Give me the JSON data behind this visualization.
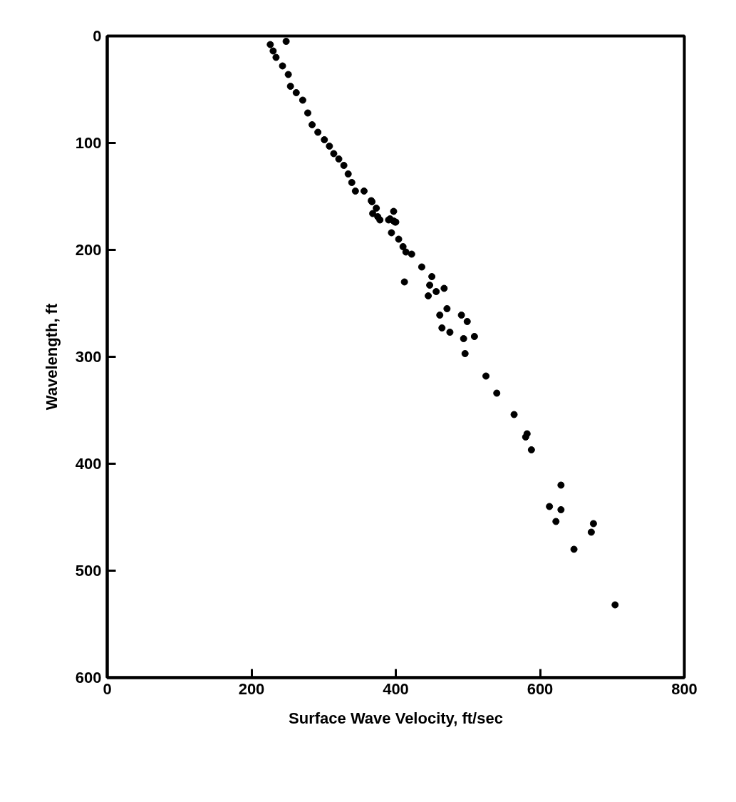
{
  "chart_data": {
    "type": "scatter",
    "xlabel": "Surface Wave Velocity, ft/sec",
    "ylabel": "Wavelength, ft",
    "xlim": [
      0,
      800
    ],
    "ylim": [
      600,
      0
    ],
    "xticks": [
      0,
      200,
      400,
      600,
      800
    ],
    "yticks": [
      0,
      100,
      200,
      300,
      400,
      500,
      600
    ],
    "grid": false,
    "marker": "circle",
    "series": [
      {
        "color": "#000000",
        "x": [
          226,
          248,
          230,
          234,
          243,
          251,
          254,
          262,
          271,
          278,
          284,
          292,
          301,
          308,
          314,
          321,
          328,
          334,
          339,
          344,
          356,
          366,
          367,
          368,
          373,
          378,
          375,
          392,
          397,
          397,
          390,
          399,
          400,
          394,
          404,
          410,
          414,
          422,
          436,
          412,
          450,
          447,
          456,
          467,
          445,
          471,
          461,
          491,
          499,
          464,
          475,
          494,
          509,
          496,
          525,
          540,
          564,
          582,
          580,
          588,
          629,
          613,
          629,
          622,
          674,
          671,
          647,
          704
        ],
        "values": [
          8,
          5,
          14,
          20,
          28,
          36,
          47,
          53,
          60,
          72,
          83,
          90,
          97,
          103,
          110,
          115,
          121,
          129,
          137,
          145,
          145,
          154,
          155,
          166,
          161,
          172,
          169,
          171,
          164,
          173,
          172,
          174,
          174,
          184,
          190,
          197,
          202,
          204,
          216,
          230,
          225,
          233,
          239,
          236,
          243,
          255,
          261,
          261,
          267,
          273,
          277,
          283,
          281,
          297,
          318,
          334,
          354,
          372,
          375,
          387,
          420,
          440,
          443,
          454,
          456,
          464,
          480,
          532
        ]
      }
    ]
  }
}
